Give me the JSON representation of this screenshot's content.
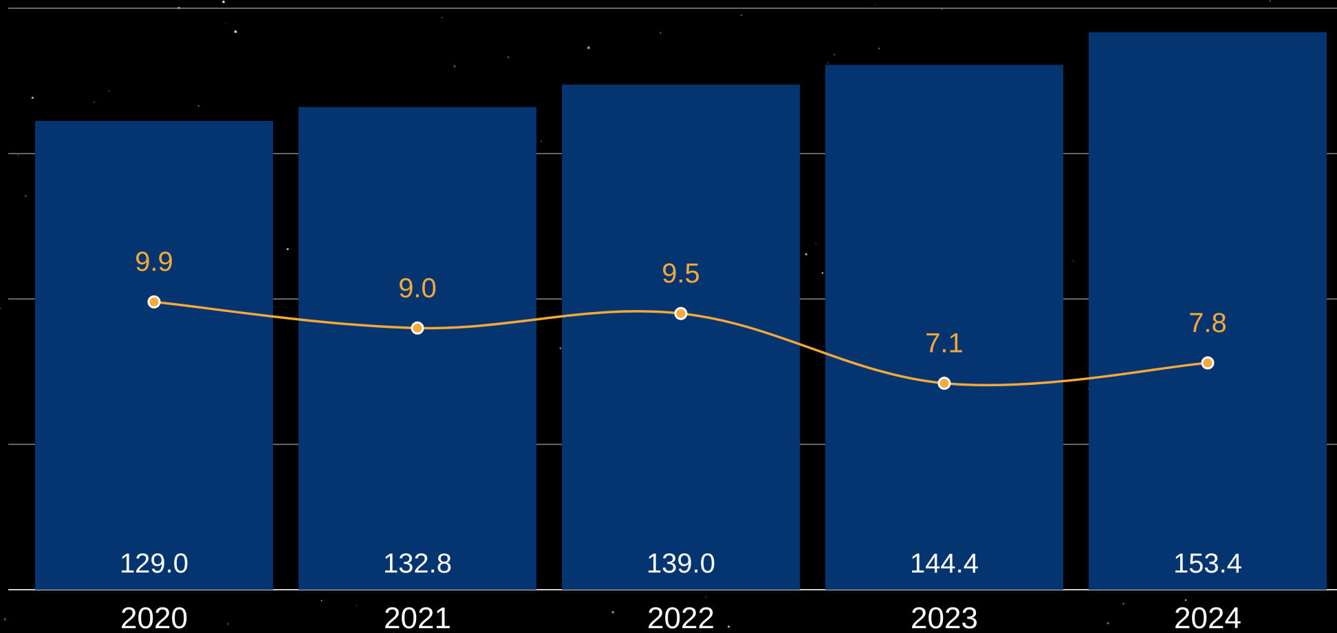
{
  "colors": {
    "background": "#000000",
    "bar": "#053570",
    "line": "#f5a938",
    "gridline": "#8a8a8a",
    "bar_label": "#ffffff",
    "line_label": "#f5a938",
    "x_tick_label": "#ffffff"
  },
  "chart_data": {
    "type": "bar",
    "categories": [
      "2020",
      "2021",
      "2022",
      "2023",
      "2024"
    ],
    "series": [
      {
        "type": "bar",
        "values": [
          129.0,
          132.8,
          139.0,
          144.4,
          153.4
        ],
        "labels": [
          "129.0",
          "132.8",
          "139.0",
          "144.4",
          "153.4"
        ]
      },
      {
        "type": "line",
        "values": [
          9.9,
          9.0,
          9.5,
          7.1,
          7.8
        ],
        "labels": [
          "9.9",
          "9.0",
          "9.5",
          "7.1",
          "7.8"
        ]
      }
    ],
    "title": "",
    "xlabel": "",
    "ylabel": "",
    "ylim_bar": [
      0,
      160
    ],
    "ylim_line": [
      0,
      20
    ],
    "grid": true,
    "legend": "none"
  }
}
